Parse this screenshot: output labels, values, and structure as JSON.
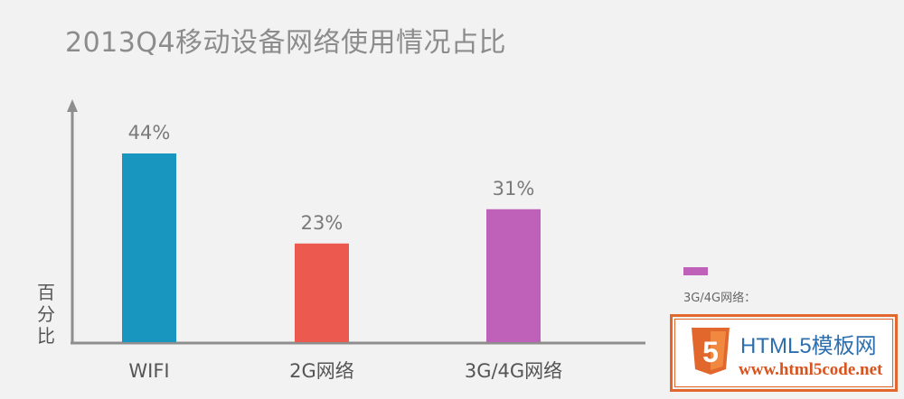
{
  "chart_data": {
    "type": "bar",
    "title": "2013Q4移动设备网络使用情况占比",
    "ylabel": "百分比",
    "xlabel": "",
    "ylim": [
      0,
      60
    ],
    "grid": false,
    "categories": [
      "WIFI",
      "2G网络",
      "3G/4G网络"
    ],
    "values": [
      44,
      23,
      31
    ],
    "value_labels": [
      "44%",
      "23%",
      "31%"
    ],
    "bar_colors": [
      "#1896c0",
      "#ec5a4f",
      "#c061b9"
    ],
    "legend": {
      "placement": "right",
      "entries": [
        {
          "label": "3G/4G网络：",
          "color": "#c061b9"
        }
      ]
    }
  },
  "watermark": {
    "title": "HTML5模板网",
    "url": "www.html5code.net",
    "logo_number": "5",
    "logo_color": "#e2672c"
  }
}
